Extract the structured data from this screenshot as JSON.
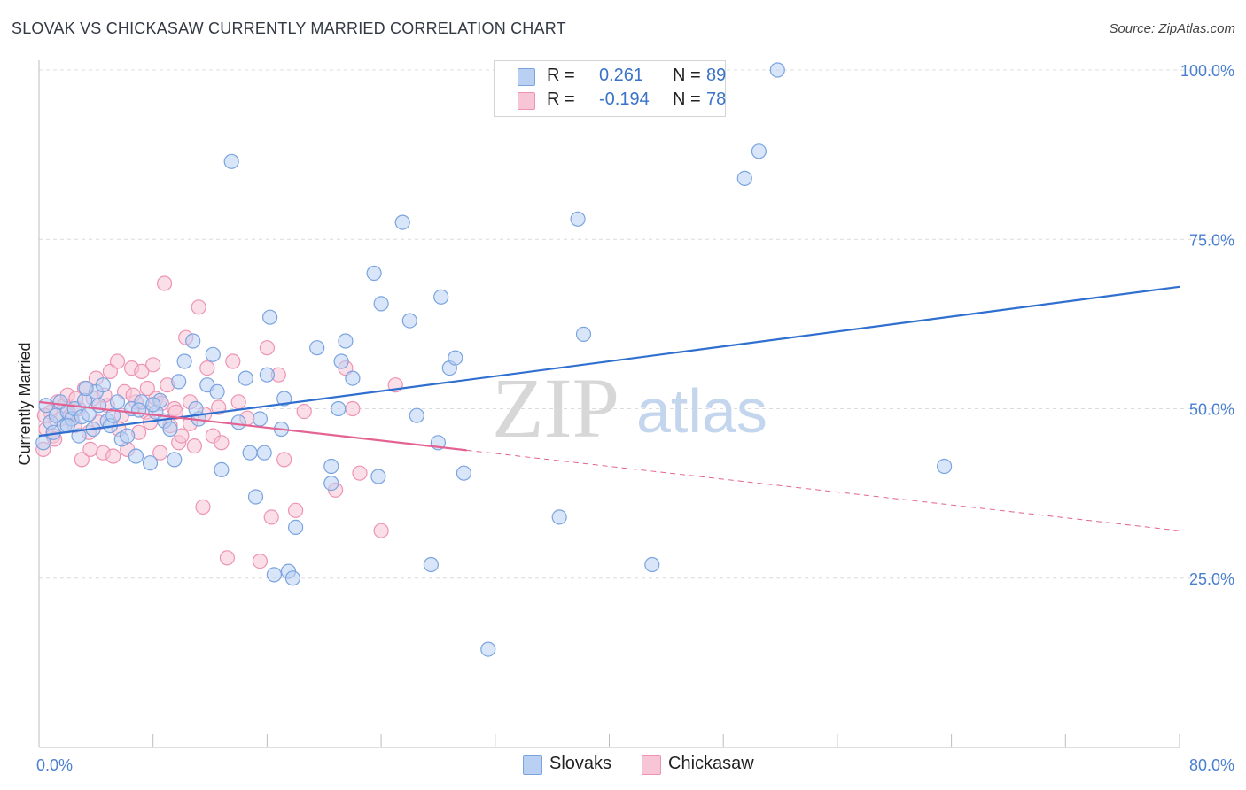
{
  "title": "SLOVAK VS CHICKASAW CURRENTLY MARRIED CORRELATION CHART",
  "source": "Source: ZipAtlas.com",
  "watermark": {
    "zip": "ZIP",
    "atlas": "atlas"
  },
  "legend": {
    "rows": [
      {
        "r_label": "R =",
        "r_value": "0.261",
        "n_label": "N =",
        "n_value": "89"
      },
      {
        "r_label": "R =",
        "r_value": "-0.194",
        "n_label": "N =",
        "n_value": "78"
      }
    ]
  },
  "bottom_legend": [
    "Slovaks",
    "Chickasaw"
  ],
  "colors": {
    "slovaks_fill": "#b9d0f2",
    "slovaks_stroke": "#7aa4e0",
    "slovaks_line": "#2f6fcf",
    "chickasaw_fill": "#f8c5d6",
    "chickasaw_stroke": "#ee93b3",
    "chickasaw_line": "#e36291",
    "tick_text": "#4a7fd0"
  },
  "chart_data": {
    "type": "scatter",
    "title": "SLOVAK VS CHICKASAW CURRENTLY MARRIED CORRELATION CHART",
    "xlabel": "",
    "ylabel": "Currently Married",
    "xlim": [
      0,
      80
    ],
    "ylim": [
      0,
      100
    ],
    "x_tick_labels": [
      "0.0%",
      "80.0%"
    ],
    "y_tick_labels": [
      "25.0%",
      "50.0%",
      "75.0%",
      "100.0%"
    ],
    "y_ticks": [
      25,
      50,
      75,
      100
    ],
    "grid": "horizontal dashed",
    "legend_position": "top-center",
    "series": [
      {
        "name": "Slovaks",
        "r": 0.261,
        "n": 89,
        "trend": {
          "x0": 0,
          "y0": 46.0,
          "x1": 80,
          "y1": 68.0,
          "dashed_from": null
        },
        "points": [
          [
            0.5,
            50.5
          ],
          [
            0.8,
            48.0
          ],
          [
            1.0,
            46.5
          ],
          [
            1.2,
            49.0
          ],
          [
            1.5,
            51.0
          ],
          [
            1.8,
            47.5
          ],
          [
            2.0,
            49.5
          ],
          [
            2.3,
            48.5
          ],
          [
            2.5,
            50.0
          ],
          [
            2.8,
            46.0
          ],
          [
            3.0,
            48.8
          ],
          [
            3.2,
            51.2
          ],
          [
            3.5,
            49.2
          ],
          [
            3.8,
            47.0
          ],
          [
            4.0,
            52.5
          ],
          [
            4.2,
            50.5
          ],
          [
            4.5,
            53.5
          ],
          [
            4.8,
            48.2
          ],
          [
            5.0,
            47.5
          ],
          [
            5.5,
            51.0
          ],
          [
            5.8,
            45.5
          ],
          [
            6.2,
            46.0
          ],
          [
            6.5,
            50.0
          ],
          [
            6.8,
            43.0
          ],
          [
            7.2,
            51.0
          ],
          [
            7.8,
            42.0
          ],
          [
            8.2,
            49.5
          ],
          [
            8.5,
            51.2
          ],
          [
            8.8,
            48.2
          ],
          [
            9.2,
            47.0
          ],
          [
            9.5,
            42.5
          ],
          [
            9.8,
            54.0
          ],
          [
            10.2,
            57.0
          ],
          [
            10.8,
            60.0
          ],
          [
            11.2,
            48.5
          ],
          [
            11.8,
            53.5
          ],
          [
            12.2,
            58.0
          ],
          [
            12.5,
            52.5
          ],
          [
            12.8,
            41.0
          ],
          [
            13.5,
            86.5
          ],
          [
            14.0,
            48.0
          ],
          [
            14.5,
            54.5
          ],
          [
            14.8,
            43.5
          ],
          [
            15.2,
            37.0
          ],
          [
            15.5,
            48.5
          ],
          [
            15.8,
            43.5
          ],
          [
            16.0,
            55.0
          ],
          [
            16.2,
            63.5
          ],
          [
            16.5,
            25.5
          ],
          [
            17.0,
            47.0
          ],
          [
            17.2,
            51.5
          ],
          [
            17.5,
            26.0
          ],
          [
            17.8,
            25.0
          ],
          [
            18.0,
            32.5
          ],
          [
            19.5,
            59.0
          ],
          [
            20.5,
            41.5
          ],
          [
            20.5,
            39.0
          ],
          [
            21.0,
            50.0
          ],
          [
            21.2,
            57.0
          ],
          [
            21.5,
            60.0
          ],
          [
            22.0,
            54.5
          ],
          [
            23.5,
            70.0
          ],
          [
            23.8,
            40.0
          ],
          [
            24.0,
            65.5
          ],
          [
            25.5,
            77.5
          ],
          [
            26.0,
            63.0
          ],
          [
            26.5,
            49.0
          ],
          [
            27.5,
            27.0
          ],
          [
            28.0,
            45.0
          ],
          [
            28.2,
            66.5
          ],
          [
            28.8,
            56.0
          ],
          [
            29.2,
            57.5
          ],
          [
            29.8,
            40.5
          ],
          [
            31.5,
            14.5
          ],
          [
            36.5,
            34.0
          ],
          [
            37.8,
            78.0
          ],
          [
            38.2,
            61.0
          ],
          [
            43.0,
            27.0
          ],
          [
            49.5,
            84.0
          ],
          [
            50.5,
            88.0
          ],
          [
            51.8,
            100.0
          ],
          [
            63.5,
            41.5
          ],
          [
            0.3,
            45.0
          ],
          [
            2.0,
            47.5
          ],
          [
            5.2,
            49.0
          ],
          [
            11.0,
            50.0
          ],
          [
            3.3,
            53.0
          ],
          [
            7.0,
            49.8
          ],
          [
            8.0,
            50.6
          ]
        ]
      },
      {
        "name": "Chickasaw",
        "r": -0.194,
        "n": 78,
        "trend": {
          "x0": 0,
          "y0": 51.0,
          "x1": 80,
          "y1": 32.0,
          "dashed_from": 30
        },
        "points": [
          [
            0.3,
            44.0
          ],
          [
            0.5,
            47.0
          ],
          [
            0.8,
            49.5
          ],
          [
            1.0,
            46.0
          ],
          [
            1.3,
            51.0
          ],
          [
            1.5,
            48.5
          ],
          [
            1.8,
            50.5
          ],
          [
            2.0,
            52.0
          ],
          [
            2.2,
            49.0
          ],
          [
            2.5,
            47.5
          ],
          [
            2.8,
            50.0
          ],
          [
            3.0,
            42.5
          ],
          [
            3.2,
            53.0
          ],
          [
            3.5,
            46.5
          ],
          [
            3.8,
            51.5
          ],
          [
            4.0,
            54.5
          ],
          [
            4.2,
            48.0
          ],
          [
            4.5,
            43.5
          ],
          [
            4.8,
            50.5
          ],
          [
            5.0,
            55.5
          ],
          [
            5.2,
            43.0
          ],
          [
            5.5,
            57.0
          ],
          [
            5.8,
            49.0
          ],
          [
            6.0,
            52.5
          ],
          [
            6.2,
            44.0
          ],
          [
            6.5,
            56.0
          ],
          [
            6.8,
            51.0
          ],
          [
            7.0,
            46.5
          ],
          [
            7.2,
            55.5
          ],
          [
            7.5,
            49.5
          ],
          [
            7.8,
            48.0
          ],
          [
            8.0,
            56.5
          ],
          [
            8.2,
            51.5
          ],
          [
            8.5,
            43.5
          ],
          [
            8.8,
            68.5
          ],
          [
            9.0,
            53.5
          ],
          [
            9.2,
            47.5
          ],
          [
            9.5,
            50.0
          ],
          [
            9.8,
            45.0
          ],
          [
            10.0,
            46.0
          ],
          [
            10.3,
            60.5
          ],
          [
            10.6,
            51.0
          ],
          [
            10.9,
            44.5
          ],
          [
            11.2,
            65.0
          ],
          [
            11.5,
            35.5
          ],
          [
            11.8,
            56.0
          ],
          [
            12.2,
            46.0
          ],
          [
            12.8,
            45.0
          ],
          [
            13.2,
            28.0
          ],
          [
            13.6,
            57.0
          ],
          [
            14.0,
            51.0
          ],
          [
            15.5,
            27.5
          ],
          [
            16.0,
            59.0
          ],
          [
            16.3,
            34.0
          ],
          [
            16.8,
            55.0
          ],
          [
            17.2,
            42.5
          ],
          [
            18.0,
            35.0
          ],
          [
            20.8,
            38.0
          ],
          [
            21.5,
            56.0
          ],
          [
            22.0,
            50.0
          ],
          [
            22.5,
            40.5
          ],
          [
            24.0,
            32.0
          ],
          [
            25.0,
            53.5
          ],
          [
            0.4,
            49.0
          ],
          [
            1.1,
            45.5
          ],
          [
            2.6,
            51.5
          ],
          [
            3.6,
            44.0
          ],
          [
            4.6,
            52.0
          ],
          [
            5.6,
            47.0
          ],
          [
            6.6,
            52.0
          ],
          [
            7.6,
            53.0
          ],
          [
            8.6,
            50.8
          ],
          [
            9.6,
            49.5
          ],
          [
            10.6,
            47.8
          ],
          [
            11.6,
            49.2
          ],
          [
            12.6,
            50.2
          ],
          [
            14.6,
            48.6
          ],
          [
            18.6,
            49.6
          ]
        ]
      }
    ]
  }
}
